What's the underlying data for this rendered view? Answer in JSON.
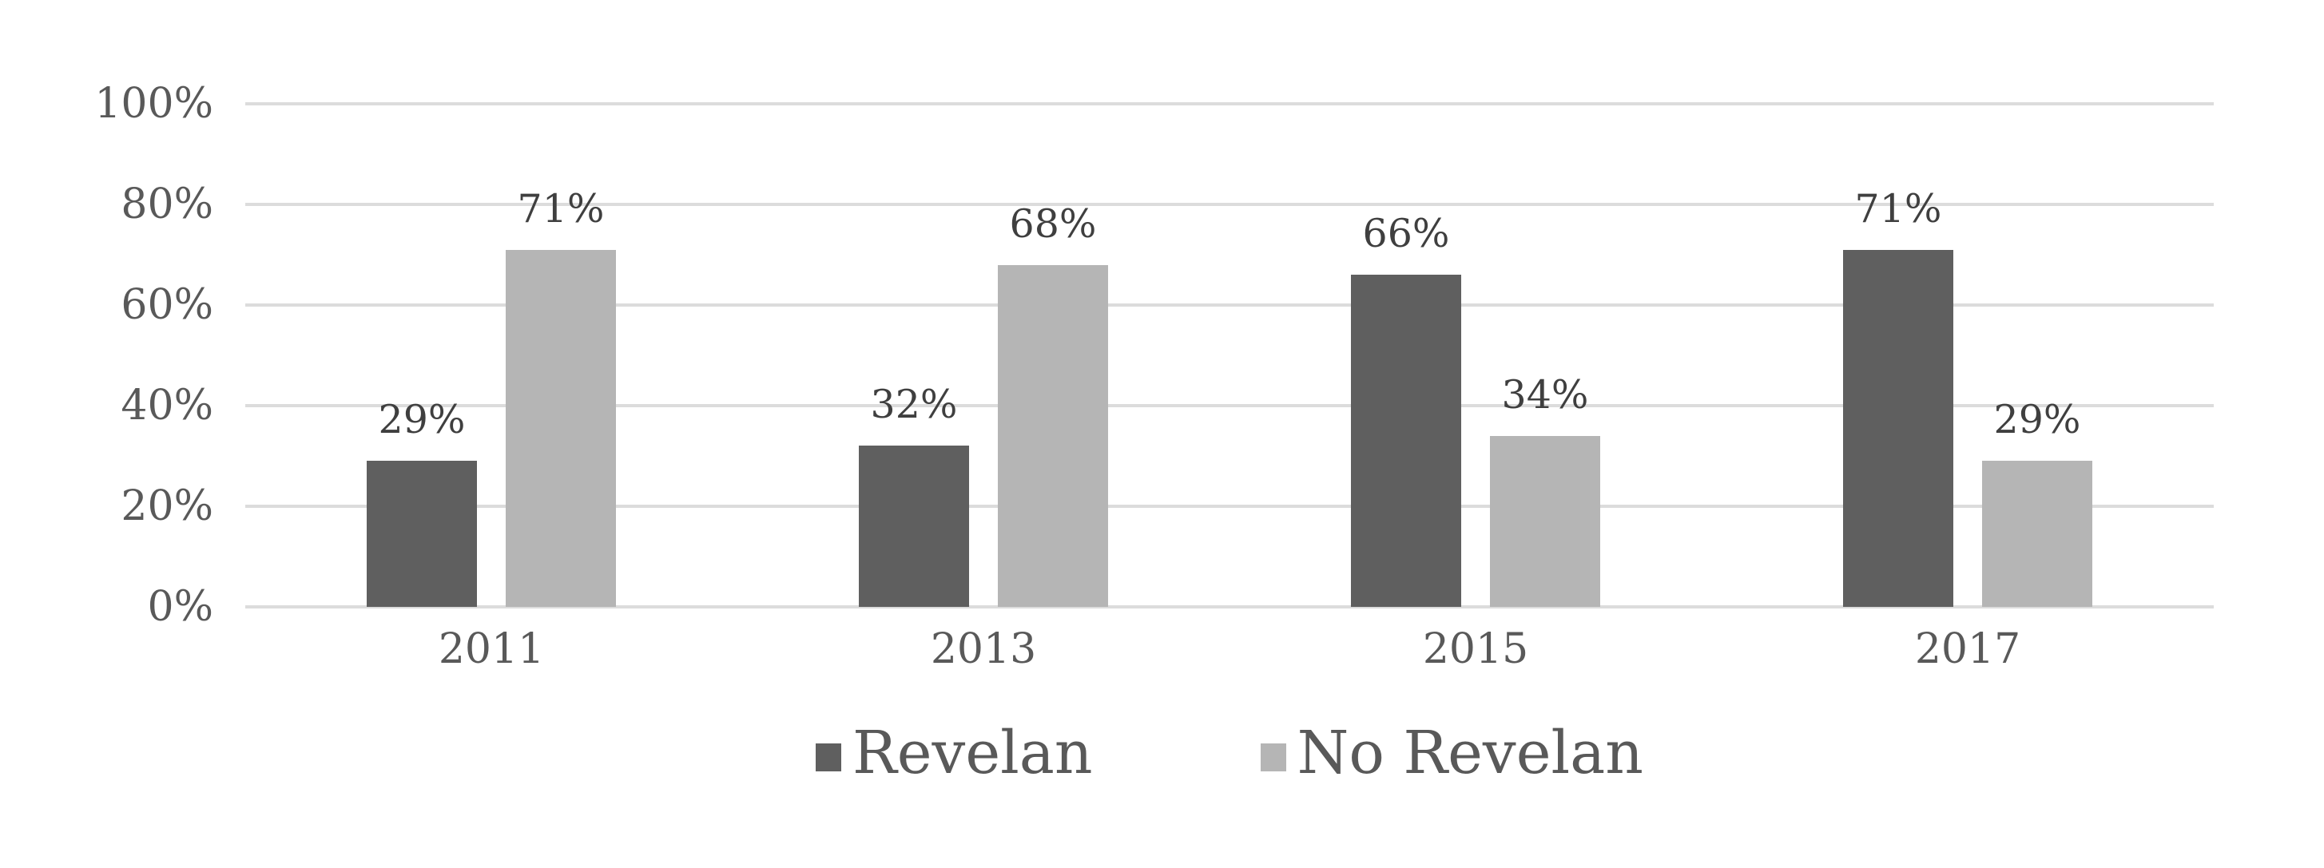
{
  "chart_data": {
    "type": "bar",
    "categories": [
      "2011",
      "2013",
      "2015",
      "2017"
    ],
    "series": [
      {
        "name": "Revelan",
        "color": "#5f5f5f",
        "values": [
          29,
          32,
          66,
          71
        ]
      },
      {
        "name": "No Revelan",
        "color": "#b5b5b5",
        "values": [
          71,
          68,
          34,
          29
        ]
      }
    ],
    "value_suffix": "%",
    "data_labels": [
      [
        "29%",
        "32%",
        "66%",
        "71%"
      ],
      [
        "71%",
        "68%",
        "34%",
        "29%"
      ]
    ],
    "title": "",
    "xlabel": "",
    "ylabel": "",
    "ylim": [
      0,
      100
    ],
    "y_ticks": [
      {
        "label": "0%",
        "value": 0
      },
      {
        "label": "20%",
        "value": 20
      },
      {
        "label": "40%",
        "value": 40
      },
      {
        "label": "60%",
        "value": 60
      },
      {
        "label": "80%",
        "value": 80
      },
      {
        "label": "100%",
        "value": 100
      }
    ],
    "grid": true,
    "legend_position": "bottom"
  },
  "colors": {
    "background": "#ffffff",
    "gridline": "#dcdcdc",
    "axis_text": "#595959",
    "data_label_text": "#3f3f3f",
    "legend_text": "#595959"
  }
}
